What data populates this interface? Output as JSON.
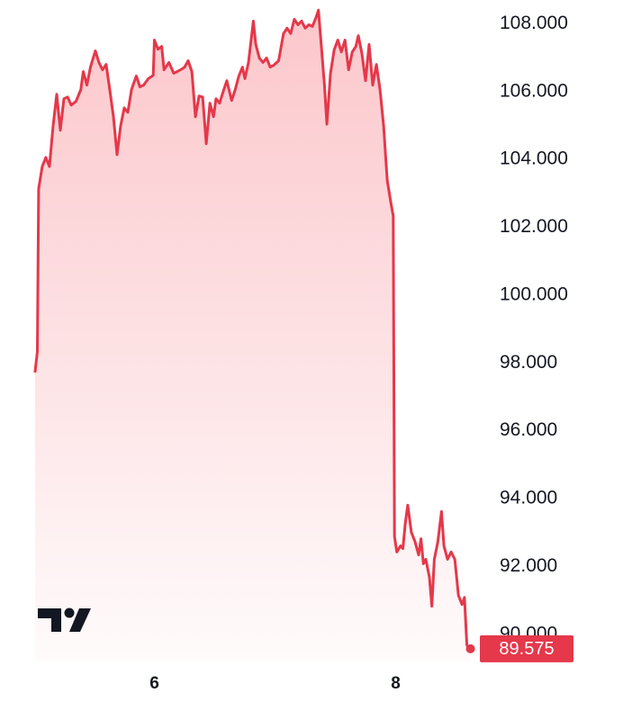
{
  "chart_data": {
    "type": "line",
    "x": [
      5.01,
      5.03,
      5.04,
      5.07,
      5.1,
      5.13,
      5.16,
      5.19,
      5.22,
      5.25,
      5.28,
      5.31,
      5.35,
      5.39,
      5.41,
      5.44,
      5.47,
      5.51,
      5.54,
      5.57,
      5.6,
      5.63,
      5.66,
      5.69,
      5.72,
      5.75,
      5.78,
      5.81,
      5.85,
      5.88,
      5.91,
      5.95,
      5.99,
      6.0,
      6.03,
      6.06,
      6.08,
      6.12,
      6.16,
      6.19,
      6.23,
      6.25,
      6.28,
      6.31,
      6.34,
      6.37,
      6.4,
      6.43,
      6.46,
      6.49,
      6.51,
      6.54,
      6.57,
      6.6,
      6.64,
      6.67,
      6.7,
      6.73,
      6.75,
      6.78,
      6.82,
      6.84,
      6.87,
      6.9,
      6.93,
      6.96,
      6.99,
      7.03,
      7.07,
      7.1,
      7.13,
      7.16,
      7.19,
      7.22,
      7.25,
      7.28,
      7.31,
      7.34,
      7.36,
      7.38,
      7.41,
      7.43,
      7.46,
      7.49,
      7.52,
      7.55,
      7.58,
      7.61,
      7.64,
      7.67,
      7.69,
      7.72,
      7.75,
      7.78,
      7.81,
      7.84,
      7.87,
      7.9,
      7.93,
      7.96,
      7.98,
      7.99,
      8.01,
      8.04,
      8.06,
      8.08,
      8.1,
      8.13,
      8.16,
      8.19,
      8.21,
      8.23,
      8.25,
      8.28,
      8.3,
      8.32,
      8.35,
      8.38,
      8.4,
      8.43,
      8.46,
      8.49,
      8.52,
      8.55,
      8.57,
      8.59,
      8.62
    ],
    "series": [
      {
        "color": "#e5384a",
        "values": [
          97.72,
          98.34,
          103.13,
          103.79,
          104.06,
          103.79,
          104.99,
          105.92,
          104.86,
          105.79,
          105.84,
          105.6,
          105.71,
          106.06,
          106.59,
          106.19,
          106.72,
          107.2,
          106.86,
          106.64,
          106.8,
          106.06,
          105.26,
          104.14,
          104.99,
          105.52,
          105.39,
          106.06,
          106.46,
          106.14,
          106.19,
          106.38,
          106.48,
          107.52,
          107.25,
          107.33,
          106.64,
          106.86,
          106.54,
          106.59,
          106.67,
          106.72,
          106.91,
          106.59,
          105.26,
          105.87,
          105.84,
          104.46,
          105.66,
          105.26,
          105.79,
          105.66,
          106.0,
          106.32,
          105.74,
          106.06,
          106.46,
          106.72,
          106.38,
          106.86,
          108.08,
          107.39,
          106.99,
          106.86,
          106.99,
          106.72,
          106.78,
          106.91,
          107.71,
          107.87,
          107.71,
          108.13,
          107.97,
          108.08,
          107.87,
          107.97,
          107.92,
          108.19,
          108.4,
          107.52,
          106.19,
          105.04,
          106.54,
          107.23,
          107.52,
          107.17,
          107.52,
          106.64,
          107.17,
          107.33,
          107.65,
          107.12,
          106.32,
          107.39,
          106.19,
          106.8,
          106.06,
          104.99,
          103.39,
          102.73,
          102.33,
          92.88,
          92.43,
          92.61,
          92.53,
          93.28,
          93.81,
          93.01,
          92.74,
          92.34,
          92.82,
          92.08,
          92.21,
          91.68,
          90.83,
          92.21,
          92.74,
          93.62,
          92.61,
          92.21,
          92.43,
          92.21,
          91.15,
          90.88,
          91.09,
          89.68,
          89.575
        ]
      }
    ],
    "xlim": [
      4.72,
      8.75
    ],
    "xticks": [
      6,
      8
    ],
    "ylim": [
      89.2,
      108.7
    ],
    "yticks": [
      {
        "value": 90,
        "label": "90.000"
      },
      {
        "value": 92,
        "label": "92.000"
      },
      {
        "value": 94,
        "label": "94.000"
      },
      {
        "value": 96,
        "label": "96.000"
      },
      {
        "value": 98,
        "label": "98.000"
      },
      {
        "value": 100,
        "label": "100.000"
      },
      {
        "value": 102,
        "label": "102.000"
      },
      {
        "value": 104,
        "label": "104.000"
      },
      {
        "value": 106,
        "label": "106.000"
      },
      {
        "value": 108,
        "label": "108.000"
      }
    ],
    "grid": false
  }
}
